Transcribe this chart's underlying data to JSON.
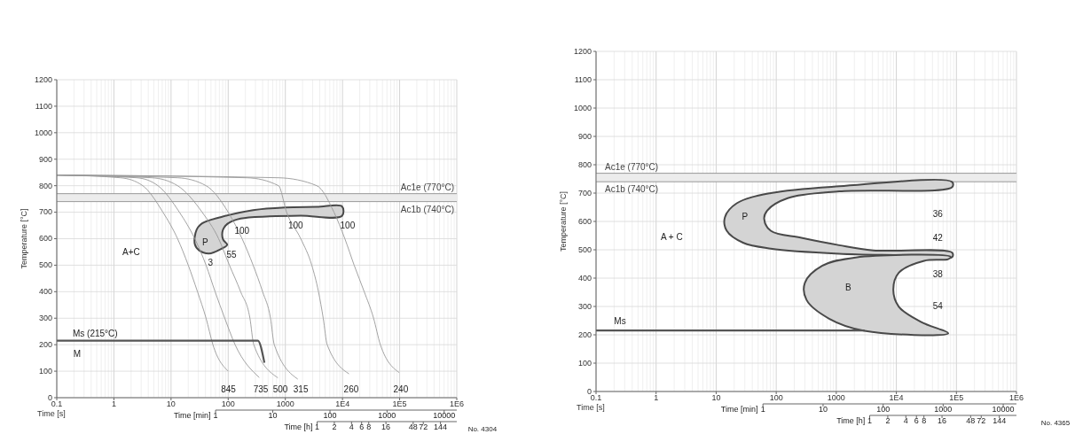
{
  "chart_data": [
    {
      "type": "line",
      "xlabel": "Time [s]",
      "ylabel": "Temperature [°C]",
      "log": "x",
      "grid": true,
      "xlim": [
        0.1,
        1000000
      ],
      "xticks": [
        0.1,
        1,
        10,
        100,
        1000,
        {
          "value": 10000,
          "label": "1E4"
        },
        {
          "value": 100000,
          "label": "1E5"
        },
        {
          "value": 1000000,
          "label": "1E6"
        }
      ],
      "ylim": [
        0,
        1200
      ],
      "yticks": [
        0,
        100,
        200,
        300,
        400,
        500,
        600,
        700,
        800,
        900,
        1000,
        1100,
        1200
      ],
      "bands": [
        {
          "axis": "y",
          "from": 740,
          "to": 770,
          "color": "#ececec"
        }
      ],
      "ref_lines": [
        {
          "axis": "y",
          "value": 770,
          "label": "Ac1e (770°C)",
          "color": "#999999"
        },
        {
          "axis": "y",
          "value": 740,
          "label": "Ac1b (740°C)",
          "color": "#999999"
        }
      ],
      "series": [
        {
          "type": "area",
          "color": "#d4d4d4",
          "x": [
            9800,
            3550,
            980,
            273,
            76,
            35,
            28,
            26,
            31,
            46,
            76,
            96,
            81,
            81,
            100,
            165,
            525,
            1860,
            9800
          ],
          "values": [
            722,
            720,
            718,
            708,
            682,
            658,
            634,
            580,
            556,
            544,
            562,
            577,
            598,
            634,
            658,
            676,
            684,
            687,
            686
          ]
        },
        {
          "color": "#999999",
          "x": [
            0.1,
            1.3,
            3.2,
            7.2,
            13,
            20,
            29,
            41,
            54,
            100
          ],
          "values": [
            840,
            830,
            800,
            700,
            600,
            500,
            400,
            300,
            200,
            100
          ]
        },
        {
          "color": "#999999",
          "x": [
            0.1,
            2.5,
            5.9,
            14,
            26,
            41,
            59,
            87,
            132,
            350
          ],
          "values": [
            840,
            830,
            800,
            700,
            600,
            500,
            400,
            300,
            200,
            76
          ]
        },
        {
          "color": "#999999",
          "x": [
            0.1,
            4.6,
            13,
            35,
            68,
            105,
            165,
            240,
            280,
            740
          ],
          "values": [
            840,
            830,
            800,
            700,
            600,
            500,
            400,
            300,
            200,
            75
          ]
        },
        {
          "color": "#999999",
          "x": [
            0.1,
            13,
            41,
            100,
            175,
            273,
            400,
            550,
            640,
            1650
          ],
          "values": [
            840,
            830,
            800,
            700,
            600,
            500,
            400,
            300,
            200,
            70
          ]
        },
        {
          "color": "#999999",
          "x": [
            0.1,
            213,
            760,
            1050,
            1860,
            2900,
            3800,
            4600,
            5400,
            13000
          ],
          "values": [
            840,
            830,
            800,
            700,
            600,
            500,
            400,
            300,
            200,
            90
          ]
        },
        {
          "color": "#999999",
          "x": [
            0.1,
            760,
            3550,
            7100,
            11000,
            16000,
            24000,
            35000,
            46000,
            98000
          ],
          "values": [
            840,
            830,
            800,
            700,
            600,
            500,
            400,
            300,
            200,
            95
          ]
        },
        {
          "color": "#555555",
          "x": [
            0.1,
            330,
            430
          ],
          "values": [
            215,
            215,
            132
          ]
        }
      ],
      "annotations": [
        "Ms (215°C)",
        "M",
        "A+C",
        "P",
        "100",
        "100",
        "100",
        "3",
        "55",
        "845",
        "735",
        "500",
        "315",
        "260",
        "240",
        "Time [min]",
        "1",
        "10",
        "100",
        "1000",
        "10000",
        "Time [h]",
        "1",
        "2",
        "4",
        "6",
        "8",
        "16",
        "48",
        "72",
        "144",
        "No. 4304"
      ]
    },
    {
      "type": "line",
      "xlabel": "Time [s]",
      "ylabel": "Temperature [°C]",
      "log": "x",
      "grid": true,
      "xlim": [
        0.1,
        1000000
      ],
      "xticks": [
        0.1,
        1,
        10,
        100,
        1000,
        {
          "value": 10000,
          "label": "1E4"
        },
        {
          "value": 100000,
          "label": "1E5"
        },
        {
          "value": 1000000,
          "label": "1E6"
        }
      ],
      "ylim": [
        0,
        1200
      ],
      "yticks": [
        0,
        100,
        200,
        300,
        400,
        500,
        600,
        700,
        800,
        900,
        1000,
        1100,
        1200
      ],
      "bands": [
        {
          "axis": "y",
          "from": 740,
          "to": 770,
          "color": "#ececec"
        }
      ],
      "ref_lines": [
        {
          "axis": "y",
          "value": 770,
          "label": "Ac1e (770°C)",
          "color": "#999999"
        },
        {
          "axis": "y",
          "value": 740,
          "label": "Ac1b (740°C)",
          "color": "#999999"
        }
      ],
      "series": [
        {
          "type": "area",
          "color": "#d4d4d4",
          "x": [
            85000,
            1120,
            81,
            22,
            14,
            15,
            28,
            81,
            1120,
            15000,
            85000,
            85000,
            4100,
            1120,
            263,
            81,
            63,
            71,
            155,
            1120,
            85000
          ],
          "values": [
            739,
            724,
            700,
            664,
            615,
            567,
            525,
            504,
            486,
            480,
            474,
            490,
            498,
            516,
            542,
            567,
            609,
            639,
            682,
            706,
            721
          ]
        },
        {
          "type": "area",
          "color": "#d4d4d4",
          "x": [
            80000,
            2100,
            580,
            300,
            320,
            760,
            2950,
            73000,
            26000,
            11000,
            8900,
            11000,
            29000,
            73000
          ],
          "values": [
            475,
            473,
            443,
            383,
            323,
            257,
            214,
            205,
            245,
            299,
            359,
            419,
            461,
            467
          ]
        },
        {
          "color": "#555555",
          "x": [
            0.1,
            2950
          ],
          "values": [
            215,
            215
          ]
        }
      ],
      "annotations": [
        "Ms",
        "A + C",
        "P",
        "B",
        "36",
        "42",
        "38",
        "54",
        "Time [min]",
        "1",
        "10",
        "100",
        "1000",
        "10000",
        "Time [h]",
        "1",
        "2",
        "4",
        "6",
        "8",
        "16",
        "48",
        "72",
        "144",
        "No. 4365"
      ]
    }
  ]
}
